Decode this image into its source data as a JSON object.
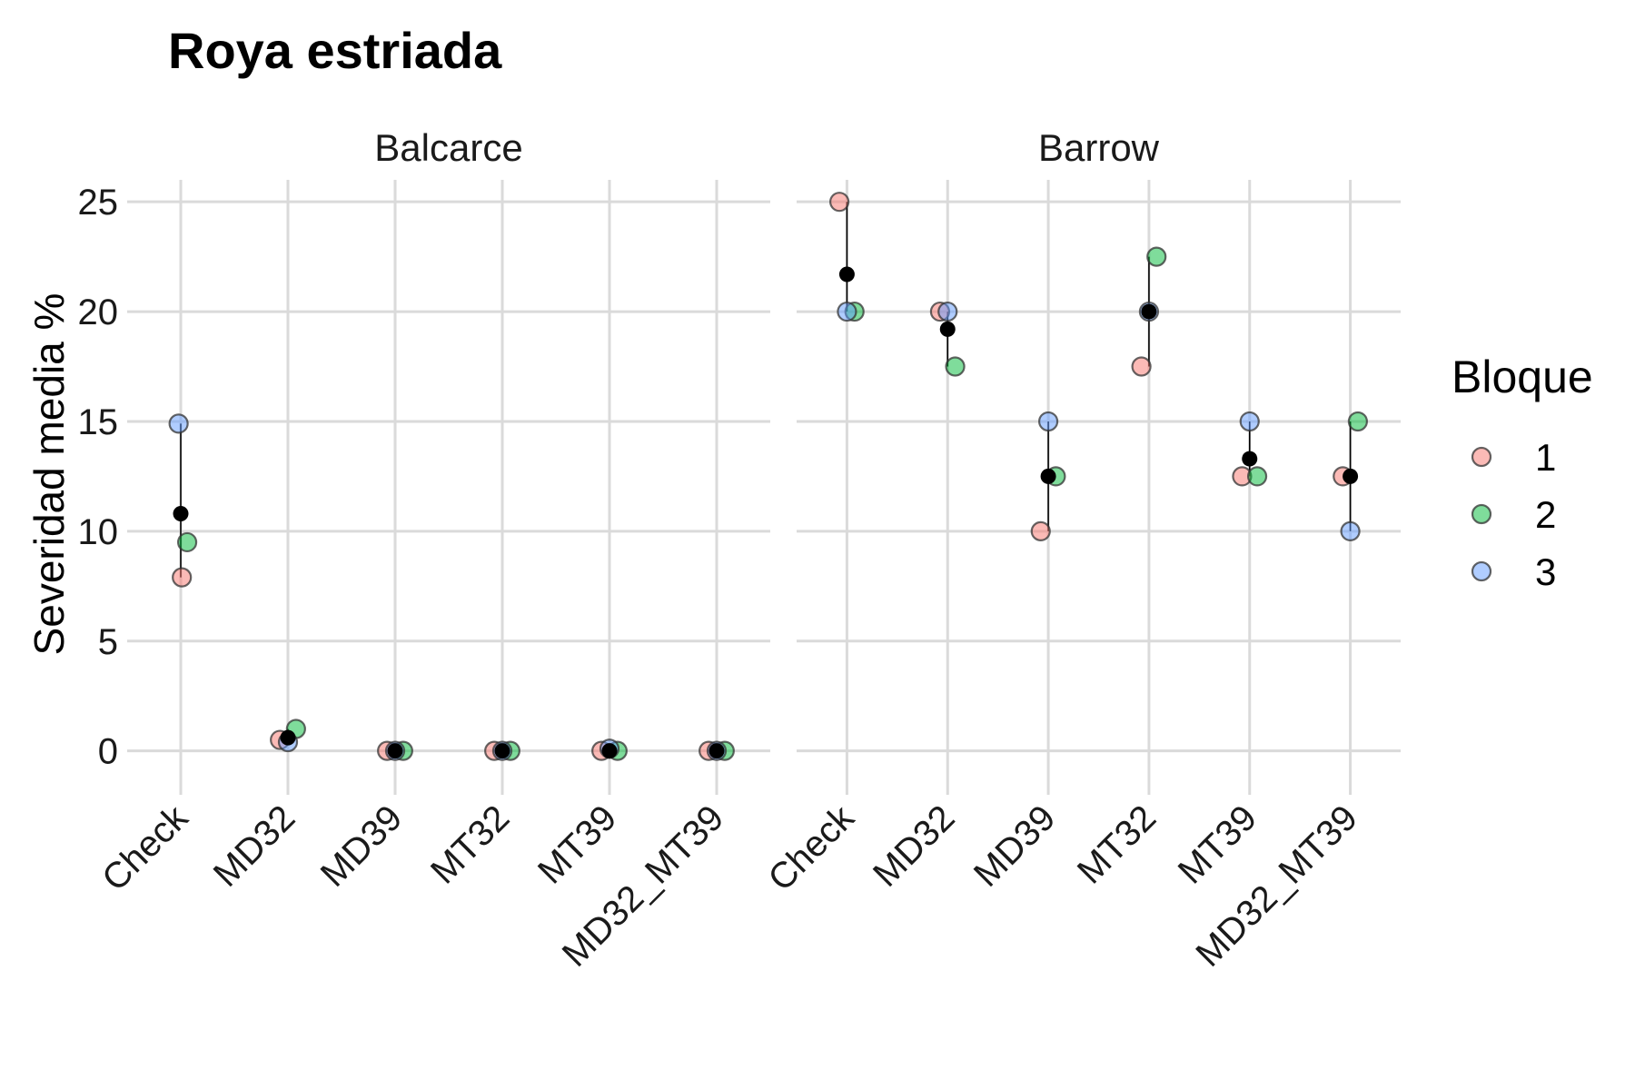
{
  "chart_data": {
    "type": "scatter",
    "title": "Roya estriada",
    "ylabel": "Severidad media %",
    "xlabel": "",
    "ylim": [
      -2,
      26
    ],
    "yticks": [
      0,
      5,
      10,
      15,
      20,
      25
    ],
    "categories": [
      "Check",
      "MD32",
      "MD39",
      "MT32",
      "MT39",
      "MD32_MT39"
    ],
    "grid": true,
    "legend": {
      "title": "Bloque",
      "position": "right",
      "entries": [
        {
          "label": "1",
          "color": "#F8766D"
        },
        {
          "label": "2",
          "color": "#00BA38"
        },
        {
          "label": "3",
          "color": "#619CFF"
        }
      ]
    },
    "mean_color": "#000000",
    "panels": [
      {
        "name": "Balcarce",
        "points": [
          {
            "category": "Check",
            "bloque": "1",
            "value": 7.9
          },
          {
            "category": "Check",
            "bloque": "2",
            "value": 9.5
          },
          {
            "category": "Check",
            "bloque": "3",
            "value": 14.9
          },
          {
            "category": "MD32",
            "bloque": "1",
            "value": 0.5
          },
          {
            "category": "MD32",
            "bloque": "2",
            "value": 1.0
          },
          {
            "category": "MD32",
            "bloque": "3",
            "value": 0.4
          },
          {
            "category": "MD39",
            "bloque": "1",
            "value": 0
          },
          {
            "category": "MD39",
            "bloque": "2",
            "value": 0
          },
          {
            "category": "MD39",
            "bloque": "3",
            "value": 0
          },
          {
            "category": "MT32",
            "bloque": "1",
            "value": 0
          },
          {
            "category": "MT32",
            "bloque": "2",
            "value": 0
          },
          {
            "category": "MT32",
            "bloque": "3",
            "value": 0
          },
          {
            "category": "MT39",
            "bloque": "1",
            "value": 0
          },
          {
            "category": "MT39",
            "bloque": "2",
            "value": 0
          },
          {
            "category": "MT39",
            "bloque": "3",
            "value": 0.1
          },
          {
            "category": "MD32_MT39",
            "bloque": "1",
            "value": 0
          },
          {
            "category": "MD32_MT39",
            "bloque": "2",
            "value": 0
          },
          {
            "category": "MD32_MT39",
            "bloque": "3",
            "value": 0
          }
        ],
        "means": [
          {
            "category": "Check",
            "value": 10.8
          },
          {
            "category": "MD32",
            "value": 0.6
          },
          {
            "category": "MD39",
            "value": 0
          },
          {
            "category": "MT32",
            "value": 0
          },
          {
            "category": "MT39",
            "value": 0
          },
          {
            "category": "MD32_MT39",
            "value": 0
          }
        ]
      },
      {
        "name": "Barrow",
        "points": [
          {
            "category": "Check",
            "bloque": "1",
            "value": 25
          },
          {
            "category": "Check",
            "bloque": "2",
            "value": 20
          },
          {
            "category": "Check",
            "bloque": "3",
            "value": 20
          },
          {
            "category": "MD32",
            "bloque": "1",
            "value": 20
          },
          {
            "category": "MD32",
            "bloque": "2",
            "value": 17.5
          },
          {
            "category": "MD32",
            "bloque": "3",
            "value": 20
          },
          {
            "category": "MD39",
            "bloque": "1",
            "value": 10
          },
          {
            "category": "MD39",
            "bloque": "2",
            "value": 12.5
          },
          {
            "category": "MD39",
            "bloque": "3",
            "value": 15
          },
          {
            "category": "MT32",
            "bloque": "1",
            "value": 17.5
          },
          {
            "category": "MT32",
            "bloque": "2",
            "value": 22.5
          },
          {
            "category": "MT32",
            "bloque": "3",
            "value": 20
          },
          {
            "category": "MT39",
            "bloque": "1",
            "value": 12.5
          },
          {
            "category": "MT39",
            "bloque": "2",
            "value": 12.5
          },
          {
            "category": "MT39",
            "bloque": "3",
            "value": 15
          },
          {
            "category": "MD32_MT39",
            "bloque": "1",
            "value": 12.5
          },
          {
            "category": "MD32_MT39",
            "bloque": "2",
            "value": 15
          },
          {
            "category": "MD32_MT39",
            "bloque": "3",
            "value": 10
          }
        ],
        "means": [
          {
            "category": "Check",
            "value": 21.7
          },
          {
            "category": "MD32",
            "value": 19.2
          },
          {
            "category": "MD39",
            "value": 12.5
          },
          {
            "category": "MT32",
            "value": 20.0
          },
          {
            "category": "MT39",
            "value": 13.3
          },
          {
            "category": "MD32_MT39",
            "value": 12.5
          }
        ]
      }
    ]
  }
}
